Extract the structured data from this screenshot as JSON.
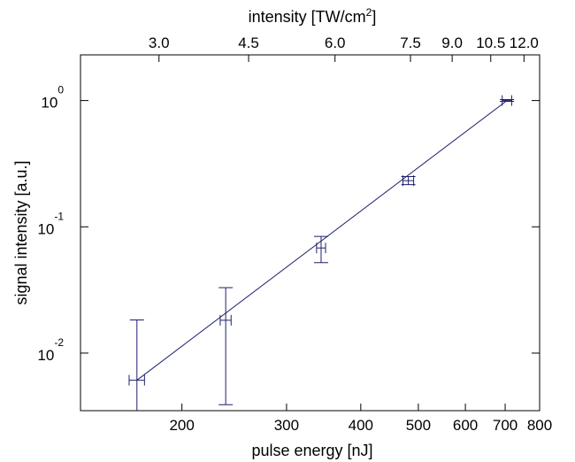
{
  "chart_data": {
    "type": "scatter",
    "title": "",
    "xlabel": "pulse energy [nJ]",
    "ylabel": "signal intensity [a.u.]",
    "top_axis_label": "intensity [TW/cm",
    "top_axis_label_sup": "2",
    "top_axis_label_end": "]",
    "x_scale": "log",
    "y_scale": "log",
    "xlim": [
      135,
      800
    ],
    "ylim": [
      0.0035,
      2.3
    ],
    "x_ticks": [
      {
        "value": 200,
        "label": "200"
      },
      {
        "value": 300,
        "label": "300"
      },
      {
        "value": 400,
        "label": "400"
      },
      {
        "value": 500,
        "label": "500"
      },
      {
        "value": 600,
        "label": "600"
      },
      {
        "value": 700,
        "label": "700"
      },
      {
        "value": 800,
        "label": "800"
      }
    ],
    "y_ticks": [
      {
        "value": 1,
        "base": "10",
        "exp": "0"
      },
      {
        "value": 0.1,
        "base": "10",
        "exp": "-1"
      },
      {
        "value": 0.01,
        "base": "10",
        "exp": "-2"
      }
    ],
    "top_ticks": [
      {
        "value": 183,
        "label": "3.0"
      },
      {
        "value": 259,
        "label": "4.5"
      },
      {
        "value": 362,
        "label": "6.0"
      },
      {
        "value": 485,
        "label": "7.5"
      },
      {
        "value": 570,
        "label": "9.0"
      },
      {
        "value": 662,
        "label": "10.5"
      },
      {
        "value": 753,
        "label": "12.0"
      }
    ],
    "series": [
      {
        "color": "#1d1f6e",
        "points": [
          {
            "x": 168,
            "y": 0.0061,
            "xerr": 5,
            "y_low": 0.0033,
            "y_high": 0.0183
          },
          {
            "x": 237,
            "y": 0.0182,
            "xerr": 5,
            "y_low": 0.0039,
            "y_high": 0.033
          },
          {
            "x": 343,
            "y": 0.068,
            "xerr": 6,
            "y_low": 0.052,
            "y_high": 0.084
          },
          {
            "x": 481,
            "y": 0.232,
            "xerr": 10,
            "y_low": 0.216,
            "y_high": 0.25
          },
          {
            "x": 705,
            "y": 1.0,
            "xerr": 13,
            "y_low": 0.985,
            "y_high": 1.018
          }
        ],
        "fit_line": [
          [
            168,
            0.0061
          ],
          [
            705,
            1.0
          ]
        ]
      }
    ],
    "grid": false,
    "legend": "none"
  }
}
